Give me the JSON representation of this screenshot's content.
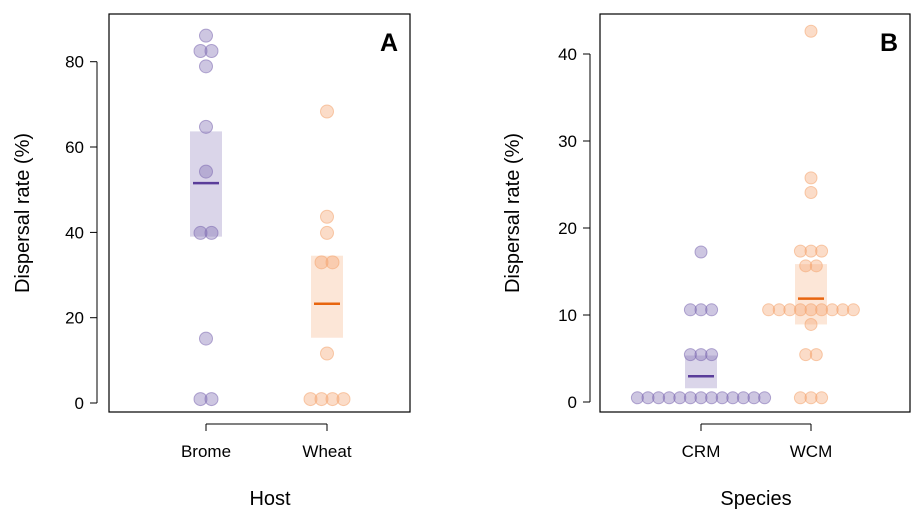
{
  "chart_data": [
    {
      "type": "scatter",
      "panel_label": "A",
      "xlabel": "Host",
      "ylabel": "Dispersal rate (%)",
      "categories": [
        "Brome",
        "Wheat"
      ],
      "ylim": [
        -2,
        92
      ],
      "yticks": [
        0,
        20,
        40,
        60,
        80
      ],
      "ytick_labels": [
        "0",
        "20",
        "40",
        "60",
        "80"
      ],
      "grid": false,
      "series": [
        {
          "category": "Brome",
          "color": "#7b68b0",
          "mean_color": "#5a3d9a",
          "points": [
            88.7,
            85.0,
            85.0,
            81.3,
            66.7,
            55.9,
            41.1,
            41.1,
            15.6,
            1.0,
            1.0
          ],
          "mean": 53.1,
          "ci": [
            40.2,
            65.6
          ]
        },
        {
          "category": "Wheat",
          "color": "#f4a46e",
          "mean_color": "#e8650f",
          "points": [
            70.4,
            45.0,
            41.1,
            34.0,
            34.0,
            12.0,
            1.0,
            1.0,
            1.0,
            1.0
          ],
          "mean": 24.0,
          "ci": [
            15.8,
            35.6
          ]
        }
      ]
    },
    {
      "type": "scatter",
      "panel_label": "B",
      "xlabel": "Species",
      "ylabel": "Dispersal rate (%)",
      "categories": [
        "CRM",
        "WCM"
      ],
      "ylim": [
        -1,
        45
      ],
      "yticks": [
        0,
        10,
        20,
        30,
        40
      ],
      "ytick_labels": [
        "0",
        "10",
        "20",
        "30",
        "40"
      ],
      "grid": false,
      "series": [
        {
          "category": "CRM",
          "color": "#7b68b0",
          "mean_color": "#5a3d9a",
          "points": [
            17.4,
            10.7,
            10.7,
            10.7,
            5.5,
            5.5,
            5.5,
            0.5,
            0.5,
            0.5,
            0.5,
            0.5,
            0.5,
            0.5,
            0.5,
            0.5,
            0.5,
            0.5,
            0.5,
            0.5
          ],
          "mean": 3.0,
          "ci": [
            1.6,
            5.4
          ]
        },
        {
          "category": "WCM",
          "color": "#f4a46e",
          "mean_color": "#e8650f",
          "points": [
            43.0,
            26.0,
            24.3,
            17.5,
            17.5,
            17.5,
            15.8,
            15.8,
            10.7,
            10.7,
            10.7,
            10.7,
            10.7,
            10.7,
            10.7,
            10.7,
            10.7,
            9.0,
            5.5,
            5.5,
            0.5,
            0.5,
            0.5
          ],
          "mean": 12.0,
          "ci": [
            9.0,
            16.0
          ]
        }
      ]
    }
  ]
}
